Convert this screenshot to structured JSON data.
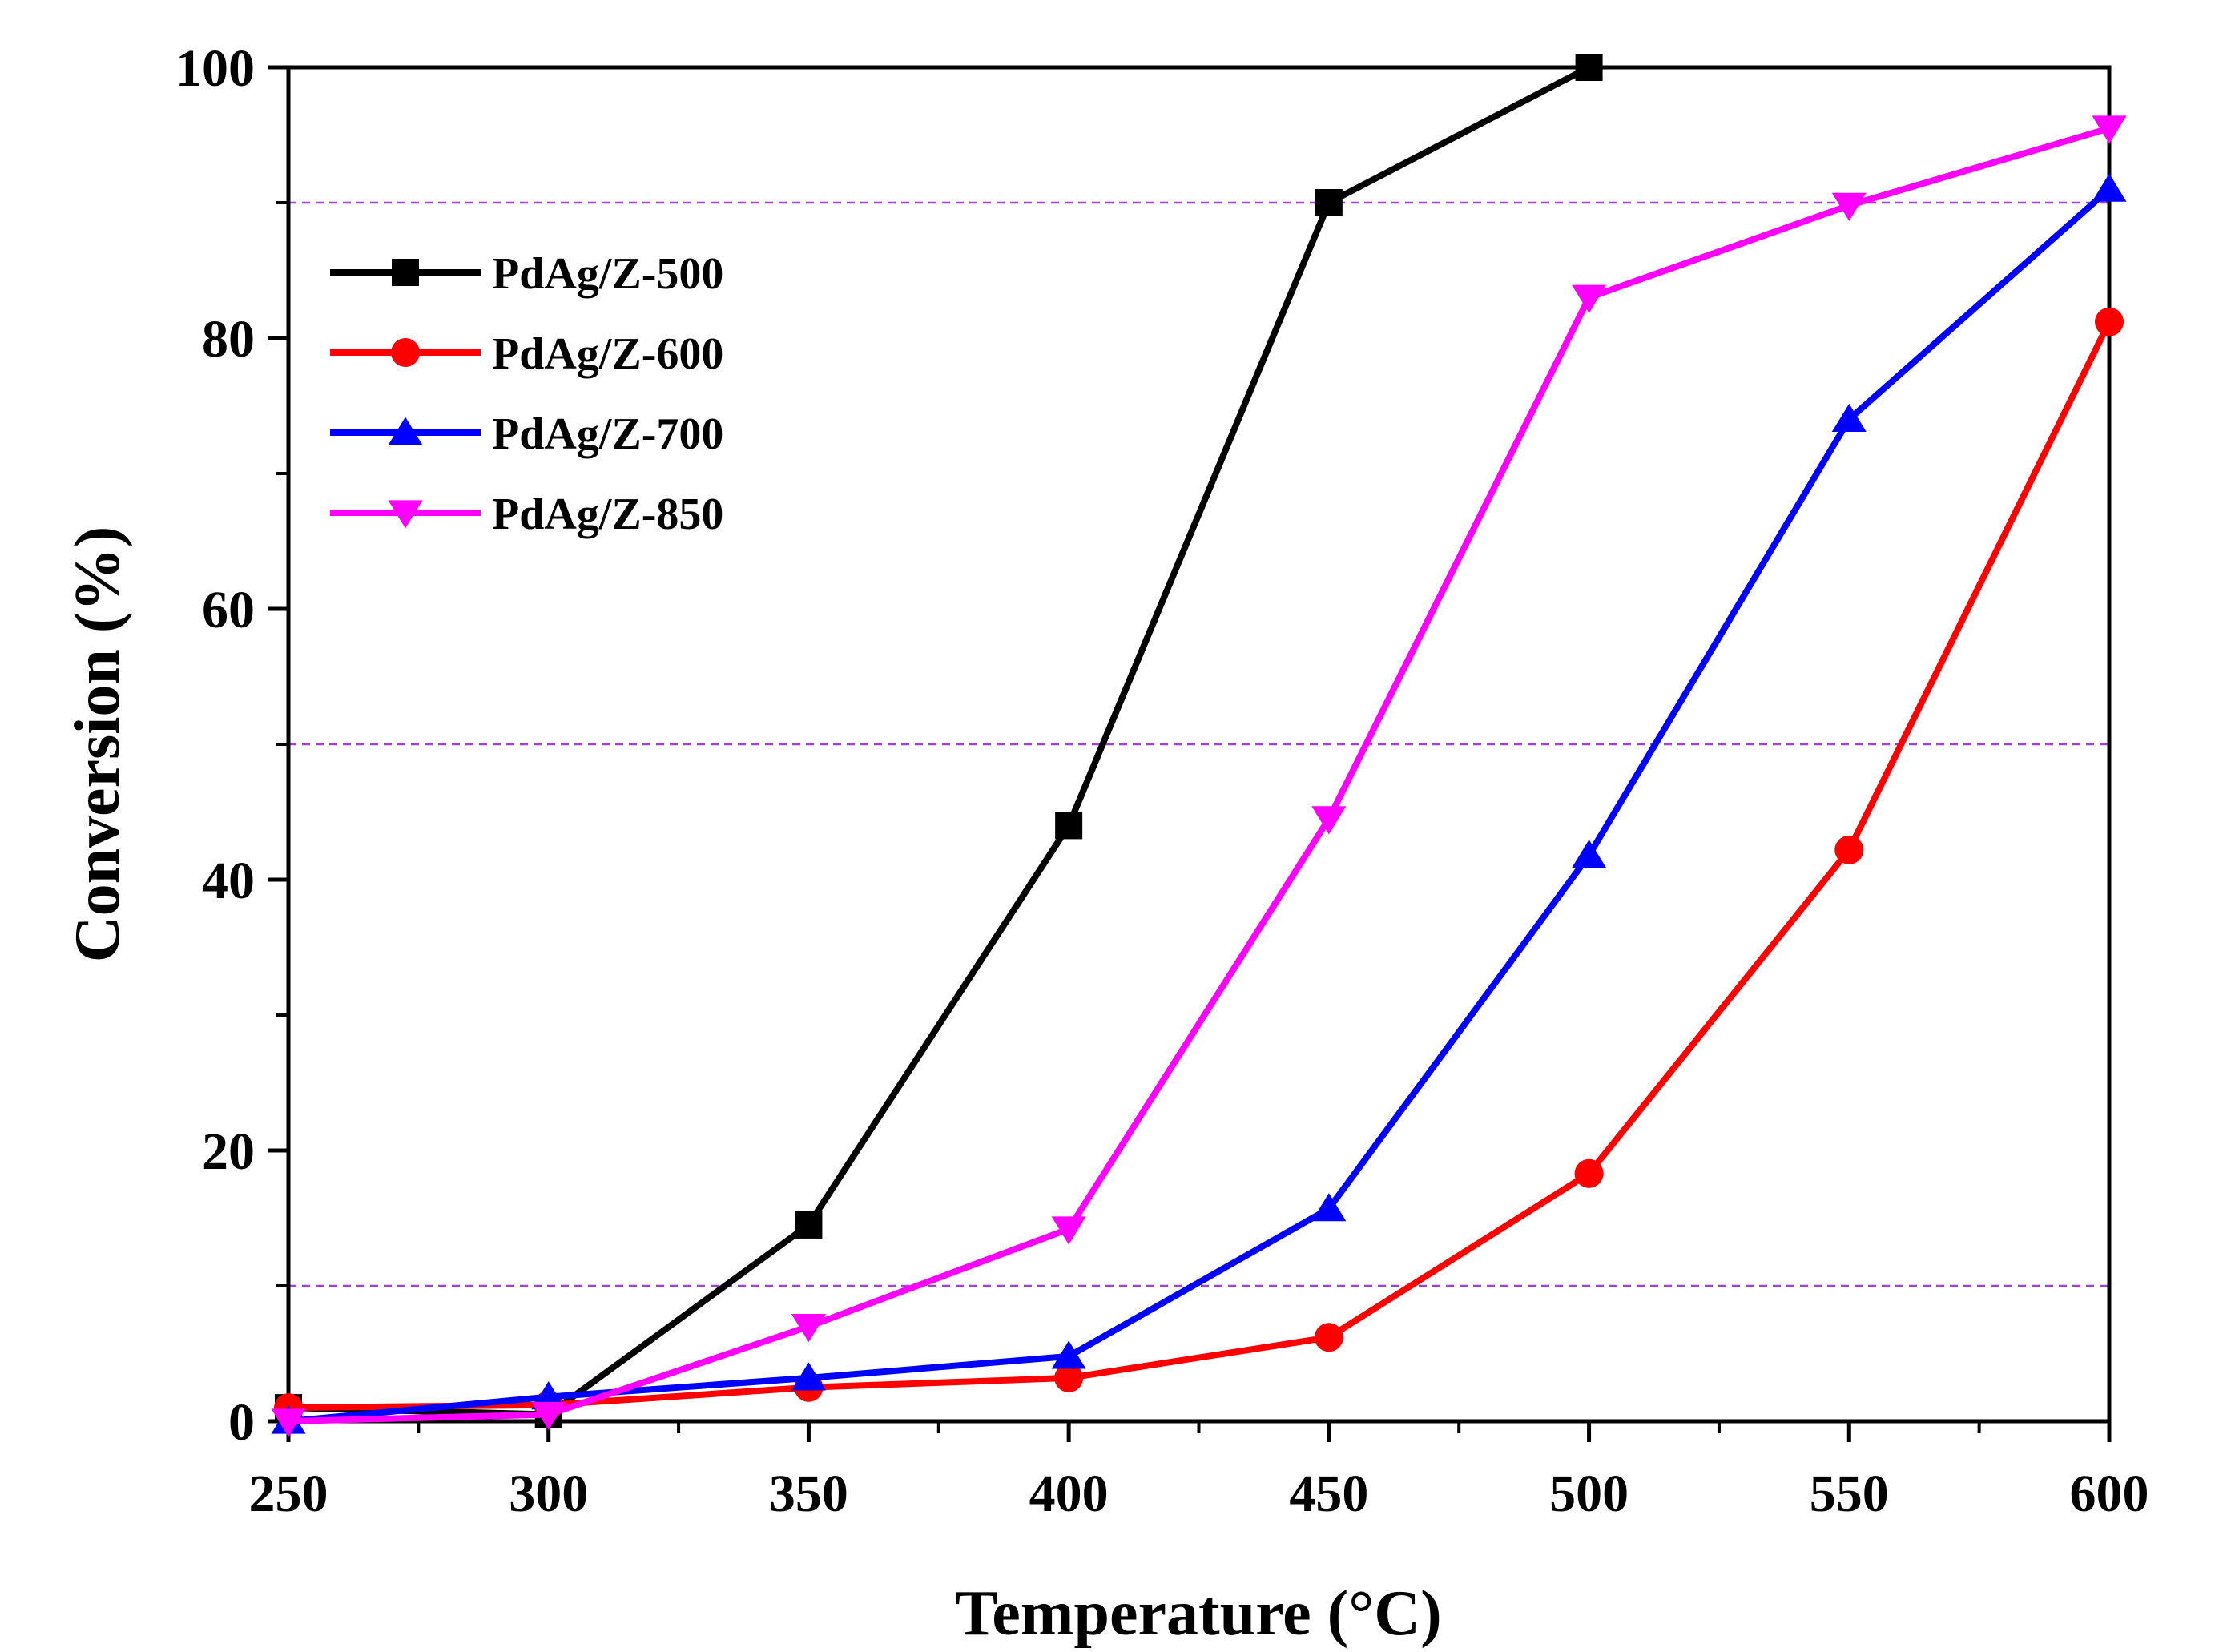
{
  "chart_data": {
    "type": "line",
    "xlabel": "Temperature (°C)",
    "ylabel": "Conversion (%)",
    "xlim": [
      250,
      600
    ],
    "ylim": [
      0,
      100
    ],
    "x_ticks": [
      250,
      300,
      350,
      400,
      450,
      500,
      550,
      600
    ],
    "y_ticks": [
      0,
      20,
      40,
      60,
      80,
      100
    ],
    "x_tick_labels": [
      "250",
      "300",
      "350",
      "400",
      "450",
      "500",
      "550",
      "600"
    ],
    "y_tick_labels": [
      "0",
      "20",
      "40",
      "60",
      "80",
      "100"
    ],
    "reference_lines": [
      10,
      50,
      90
    ],
    "reference_line_color": "#a040e0",
    "legend_position": "top-left",
    "series": [
      {
        "name": "PdAg/Z-500",
        "color": "#000000",
        "marker": "square",
        "x": [
          250,
          300,
          350,
          400,
          450,
          500
        ],
        "y": [
          1.0,
          0.5,
          14.5,
          44.0,
          90.0,
          100.0
        ]
      },
      {
        "name": "PdAg/Z-600",
        "color": "#ff0000",
        "marker": "circle",
        "x": [
          250,
          300,
          350,
          400,
          450,
          500,
          550,
          600
        ],
        "y": [
          1.0,
          1.2,
          2.5,
          3.2,
          6.2,
          18.3,
          42.2,
          81.2
        ]
      },
      {
        "name": "PdAg/Z-700",
        "color": "#0000ff",
        "marker": "triangle-up",
        "x": [
          250,
          300,
          350,
          400,
          450,
          500,
          550,
          600
        ],
        "y": [
          0.0,
          1.8,
          3.2,
          4.8,
          15.7,
          41.8,
          74.0,
          91.0
        ]
      },
      {
        "name": "PdAg/Z-850",
        "color": "#ff00ff",
        "marker": "triangle-down",
        "x": [
          250,
          300,
          350,
          400,
          450,
          500,
          550,
          600
        ],
        "y": [
          0.0,
          0.5,
          7.0,
          14.2,
          44.5,
          83.0,
          89.8,
          95.5
        ]
      }
    ]
  }
}
